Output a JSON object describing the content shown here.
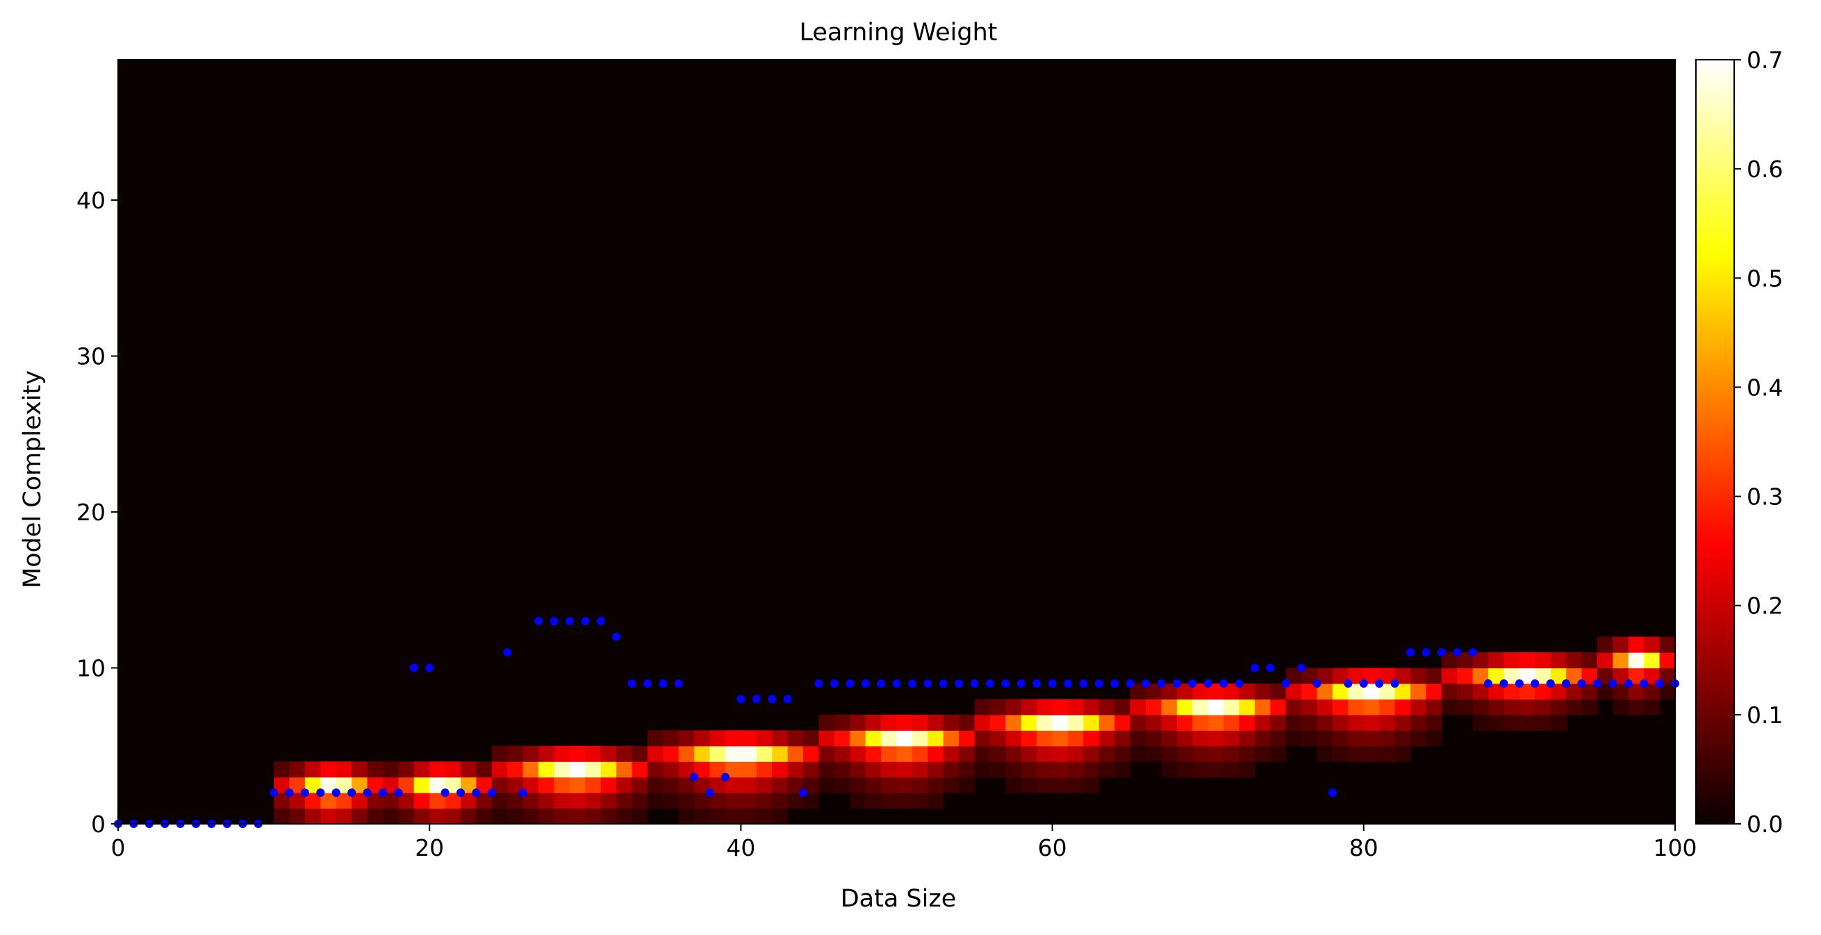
{
  "chart_data": {
    "type": "heatmap",
    "title": "Learning Weight",
    "xlabel": "Data Size",
    "ylabel": "Model Complexity",
    "xlim": [
      0,
      100
    ],
    "ylim": [
      0,
      49
    ],
    "x_ticks": [
      0,
      20,
      40,
      60,
      80,
      100
    ],
    "y_ticks": [
      0,
      10,
      20,
      30,
      40
    ],
    "colormap": "hot",
    "colorbar": {
      "min": 0.0,
      "max": 0.7,
      "ticks": [
        "0.0",
        "0.1",
        "0.2",
        "0.3",
        "0.4",
        "0.5",
        "0.6",
        "0.7"
      ]
    },
    "grid": false,
    "background_color": "#0b0000",
    "point_color": "#0000ff",
    "segments": [
      {
        "x_range": [
          10,
          17
        ],
        "peak_complexity": 2,
        "decay": 0.55
      },
      {
        "x_range": [
          17,
          24
        ],
        "peak_complexity": 2,
        "decay": 0.5
      },
      {
        "x_range": [
          24,
          34
        ],
        "peak_complexity": 3,
        "decay": 0.55
      },
      {
        "x_range": [
          34,
          45
        ],
        "peak_complexity": 4,
        "decay": 0.55
      },
      {
        "x_range": [
          45,
          55
        ],
        "peak_complexity": 5,
        "decay": 0.55
      },
      {
        "x_range": [
          55,
          65
        ],
        "peak_complexity": 6,
        "decay": 0.55
      },
      {
        "x_range": [
          65,
          75
        ],
        "peak_complexity": 7,
        "decay": 0.55
      },
      {
        "x_range": [
          75,
          85
        ],
        "peak_complexity": 8,
        "decay": 0.55
      },
      {
        "x_range": [
          85,
          95
        ],
        "peak_complexity": 9,
        "decay": 0.45
      },
      {
        "x_range": [
          95,
          100
        ],
        "peak_complexity": 10,
        "decay": 0.45
      }
    ],
    "points": [
      [
        0,
        0
      ],
      [
        1,
        0
      ],
      [
        2,
        0
      ],
      [
        3,
        0
      ],
      [
        4,
        0
      ],
      [
        5,
        0
      ],
      [
        6,
        0
      ],
      [
        7,
        0
      ],
      [
        8,
        0
      ],
      [
        9,
        0
      ],
      [
        10,
        2
      ],
      [
        11,
        2
      ],
      [
        12,
        2
      ],
      [
        13,
        2
      ],
      [
        14,
        2
      ],
      [
        15,
        2
      ],
      [
        16,
        2
      ],
      [
        17,
        2
      ],
      [
        18,
        2
      ],
      [
        19,
        10
      ],
      [
        20,
        10
      ],
      [
        21,
        2
      ],
      [
        22,
        2
      ],
      [
        23,
        2
      ],
      [
        24,
        2
      ],
      [
        25,
        11
      ],
      [
        26,
        2
      ],
      [
        27,
        13
      ],
      [
        28,
        13
      ],
      [
        29,
        13
      ],
      [
        30,
        13
      ],
      [
        31,
        13
      ],
      [
        32,
        12
      ],
      [
        33,
        9
      ],
      [
        34,
        9
      ],
      [
        35,
        9
      ],
      [
        36,
        9
      ],
      [
        37,
        3
      ],
      [
        38,
        2
      ],
      [
        39,
        3
      ],
      [
        40,
        8
      ],
      [
        41,
        8
      ],
      [
        42,
        8
      ],
      [
        43,
        8
      ],
      [
        44,
        2
      ],
      [
        45,
        9
      ],
      [
        46,
        9
      ],
      [
        47,
        9
      ],
      [
        48,
        9
      ],
      [
        49,
        9
      ],
      [
        50,
        9
      ],
      [
        51,
        9
      ],
      [
        52,
        9
      ],
      [
        53,
        9
      ],
      [
        54,
        9
      ],
      [
        55,
        9
      ],
      [
        56,
        9
      ],
      [
        57,
        9
      ],
      [
        58,
        9
      ],
      [
        59,
        9
      ],
      [
        60,
        9
      ],
      [
        61,
        9
      ],
      [
        62,
        9
      ],
      [
        63,
        9
      ],
      [
        64,
        9
      ],
      [
        65,
        9
      ],
      [
        66,
        9
      ],
      [
        67,
        9
      ],
      [
        68,
        9
      ],
      [
        69,
        9
      ],
      [
        70,
        9
      ],
      [
        71,
        9
      ],
      [
        72,
        9
      ],
      [
        73,
        10
      ],
      [
        74,
        10
      ],
      [
        75,
        9
      ],
      [
        76,
        10
      ],
      [
        77,
        9
      ],
      [
        78,
        2
      ],
      [
        79,
        9
      ],
      [
        80,
        9
      ],
      [
        81,
        9
      ],
      [
        82,
        9
      ],
      [
        83,
        11
      ],
      [
        84,
        11
      ],
      [
        85,
        11
      ],
      [
        86,
        11
      ],
      [
        87,
        11
      ],
      [
        88,
        9
      ],
      [
        89,
        9
      ],
      [
        90,
        9
      ],
      [
        91,
        9
      ],
      [
        92,
        9
      ],
      [
        93,
        9
      ],
      [
        94,
        9
      ],
      [
        95,
        9
      ],
      [
        96,
        9
      ],
      [
        97,
        9
      ],
      [
        98,
        9
      ],
      [
        99,
        9
      ],
      [
        100,
        9
      ]
    ]
  }
}
